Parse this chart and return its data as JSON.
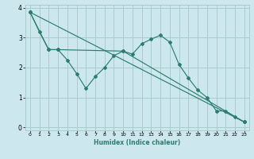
{
  "xlabel": "Humidex (Indice chaleur)",
  "bg_color": "#cce8ee",
  "grid_color": "#aacccc",
  "line_color": "#2d7d6e",
  "xlim": [
    -0.5,
    23.5
  ],
  "ylim": [
    -0.1,
    4.1
  ],
  "xticks": [
    0,
    1,
    2,
    3,
    4,
    5,
    6,
    7,
    8,
    9,
    10,
    11,
    12,
    13,
    14,
    15,
    16,
    17,
    18,
    19,
    20,
    21,
    22,
    23
  ],
  "yticks": [
    0,
    1,
    2,
    3,
    4
  ],
  "line1_x": [
    0,
    1,
    2,
    3,
    4,
    5,
    6,
    7,
    8,
    9,
    10,
    11,
    12,
    13,
    14,
    15,
    16,
    17,
    18,
    19,
    20,
    21,
    22,
    23
  ],
  "line1_y": [
    3.85,
    3.2,
    2.6,
    2.6,
    2.25,
    1.8,
    1.3,
    1.7,
    2.0,
    2.4,
    2.55,
    2.45,
    2.8,
    2.95,
    3.08,
    2.85,
    2.1,
    1.65,
    1.25,
    1.0,
    0.55,
    0.55,
    0.35,
    0.18
  ],
  "line2_x": [
    0,
    23
  ],
  "line2_y": [
    3.85,
    0.18
  ],
  "line3_x": [
    0,
    2,
    3,
    10,
    23
  ],
  "line3_y": [
    3.85,
    2.6,
    2.6,
    2.55,
    0.18
  ]
}
